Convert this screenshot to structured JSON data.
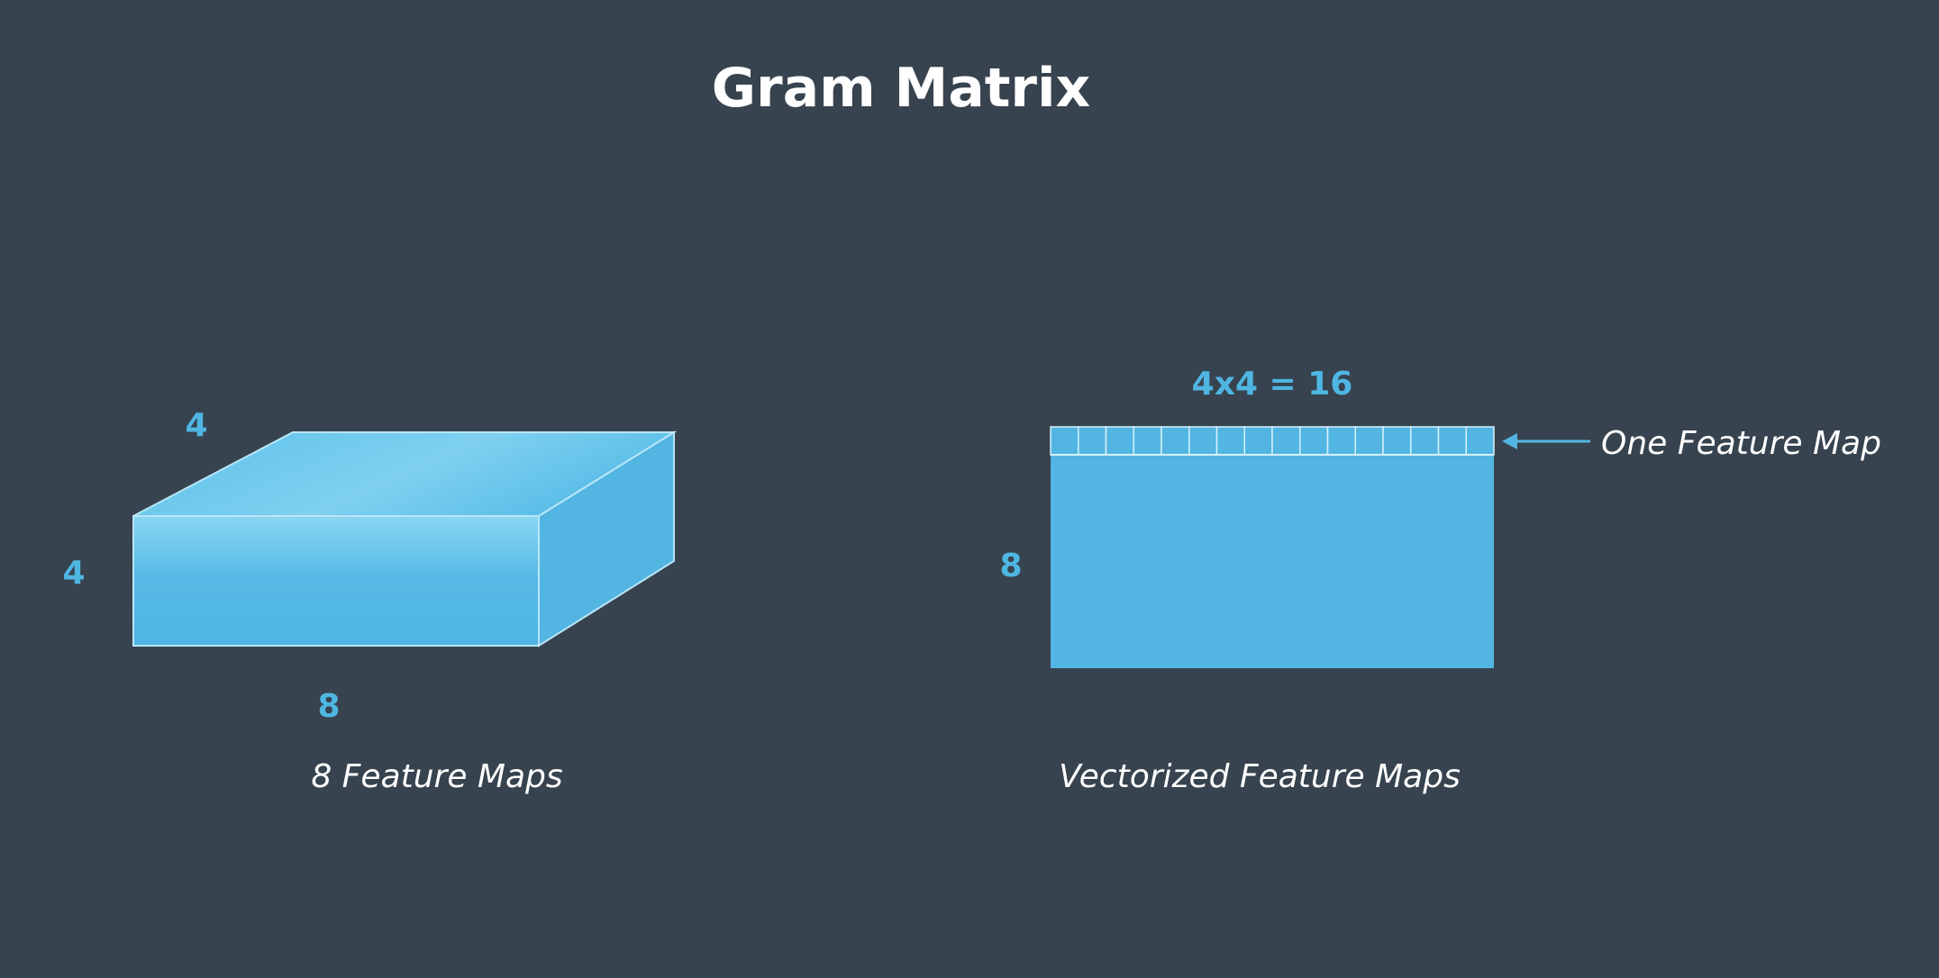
{
  "title": "Gram Matrix",
  "colors": {
    "background": "#37434f",
    "accent": "#52b5e2",
    "text": "#ffffff"
  },
  "left_figure": {
    "depth_label": "4",
    "height_label": "4",
    "width_label": "8",
    "caption": "8 Feature Maps"
  },
  "right_figure": {
    "top_label": "4x4 = 16",
    "rows_label": "8",
    "row_cells": 16,
    "arrow_label": "One Feature Map",
    "caption": "Vectorized Feature Maps"
  }
}
